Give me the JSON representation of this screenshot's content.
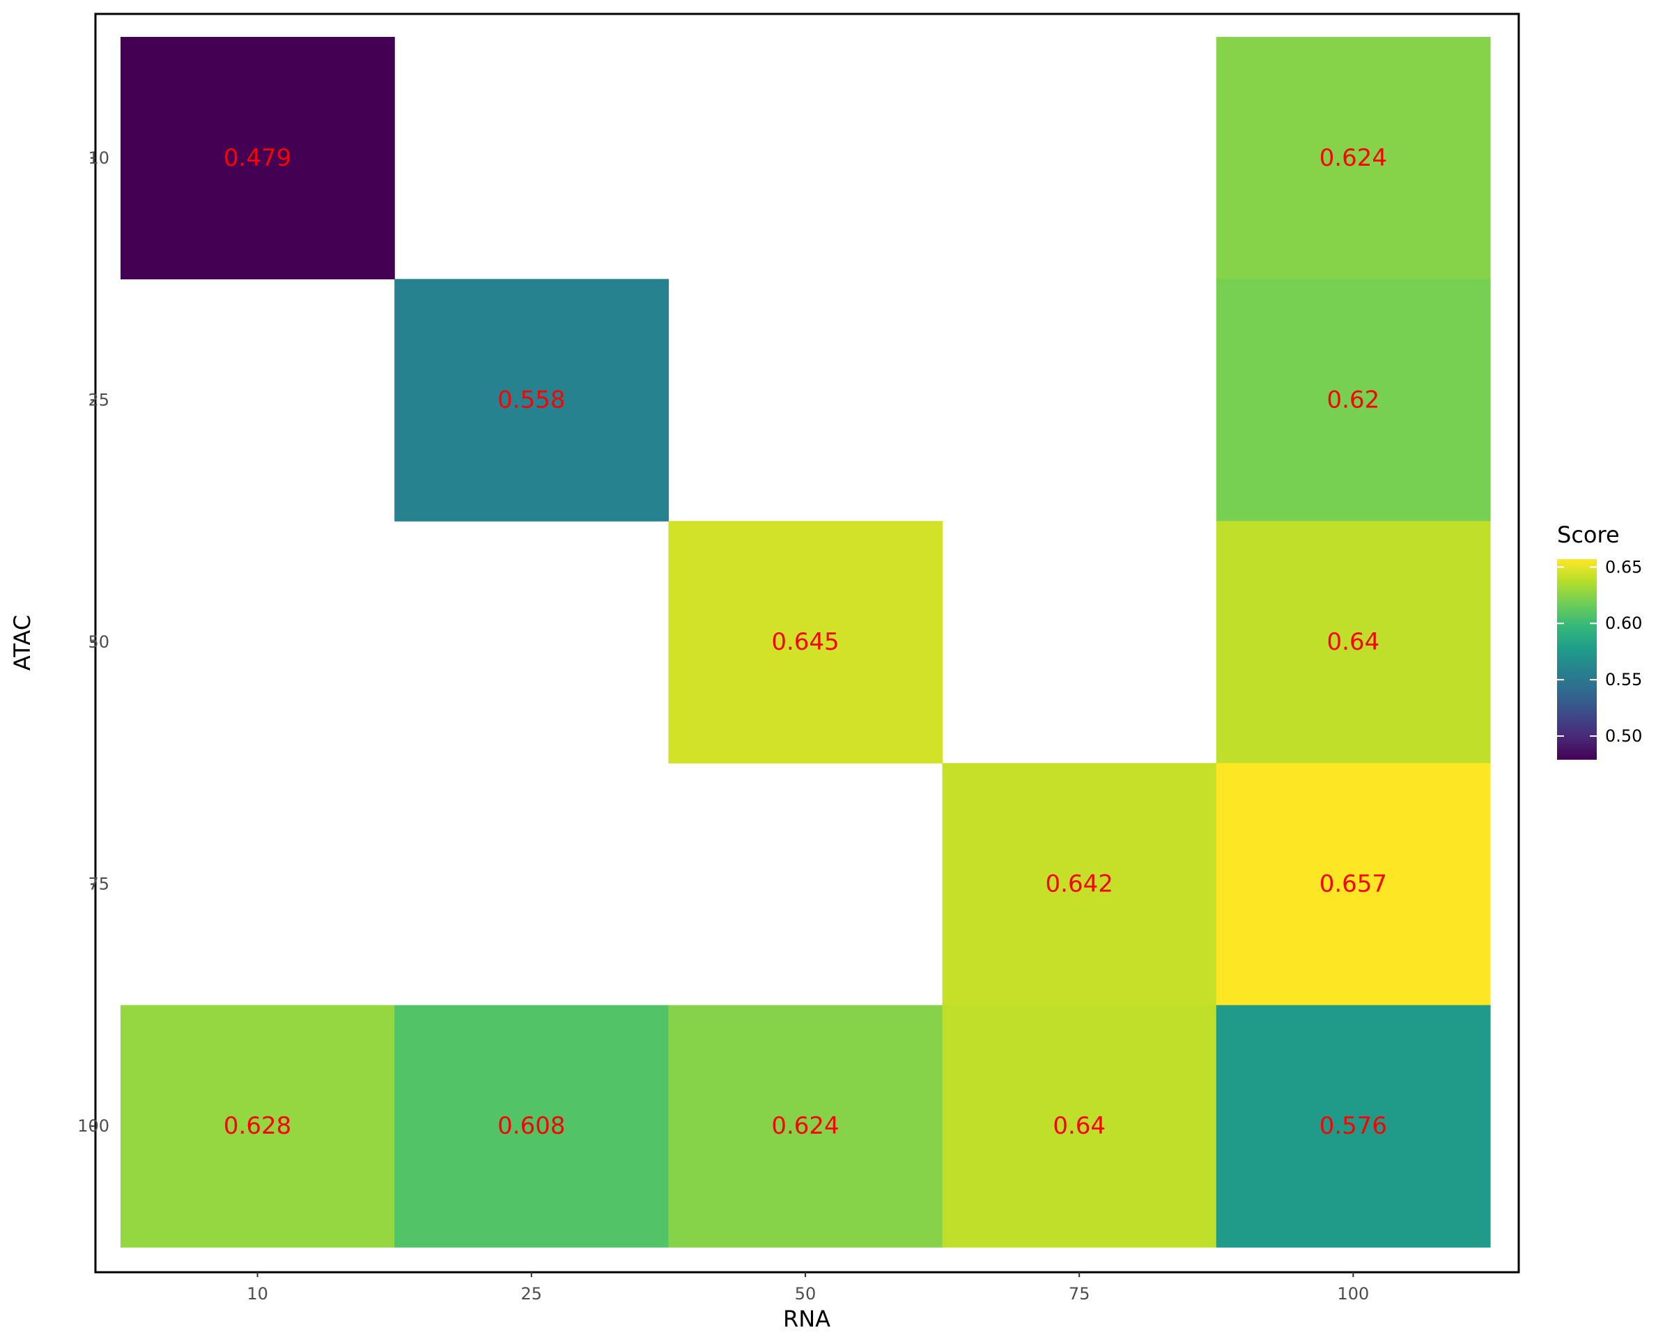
{
  "chart_data": {
    "type": "heatmap",
    "xlabel": "RNA",
    "ylabel": "ATAC",
    "x_categories": [
      "10",
      "25",
      "50",
      "75",
      "100"
    ],
    "y_categories": [
      "10",
      "25",
      "50",
      "75",
      "100"
    ],
    "cells": [
      {
        "x": "10",
        "y": "10",
        "value": 0.479,
        "label": "0.479"
      },
      {
        "x": "100",
        "y": "10",
        "value": 0.624,
        "label": "0.624"
      },
      {
        "x": "25",
        "y": "25",
        "value": 0.558,
        "label": "0.558"
      },
      {
        "x": "100",
        "y": "25",
        "value": 0.62,
        "label": "0.62"
      },
      {
        "x": "50",
        "y": "50",
        "value": 0.645,
        "label": "0.645"
      },
      {
        "x": "100",
        "y": "50",
        "value": 0.64,
        "label": "0.64"
      },
      {
        "x": "75",
        "y": "75",
        "value": 0.642,
        "label": "0.642"
      },
      {
        "x": "100",
        "y": "75",
        "value": 0.657,
        "label": "0.657"
      },
      {
        "x": "10",
        "y": "100",
        "value": 0.628,
        "label": "0.628"
      },
      {
        "x": "25",
        "y": "100",
        "value": 0.608,
        "label": "0.608"
      },
      {
        "x": "50",
        "y": "100",
        "value": 0.624,
        "label": "0.624"
      },
      {
        "x": "75",
        "y": "100",
        "value": 0.64,
        "label": "0.64"
      },
      {
        "x": "100",
        "y": "100",
        "value": 0.576,
        "label": "0.576"
      }
    ],
    "legend": {
      "title": "Score",
      "breaks": [
        0.5,
        0.55,
        0.6,
        0.65
      ],
      "break_labels": [
        "0.50",
        "0.55",
        "0.60",
        "0.65"
      ],
      "range": [
        0.479,
        0.657
      ],
      "colormap": "viridis",
      "placement": "right"
    },
    "label_color": "#ff0000",
    "grid": false
  }
}
